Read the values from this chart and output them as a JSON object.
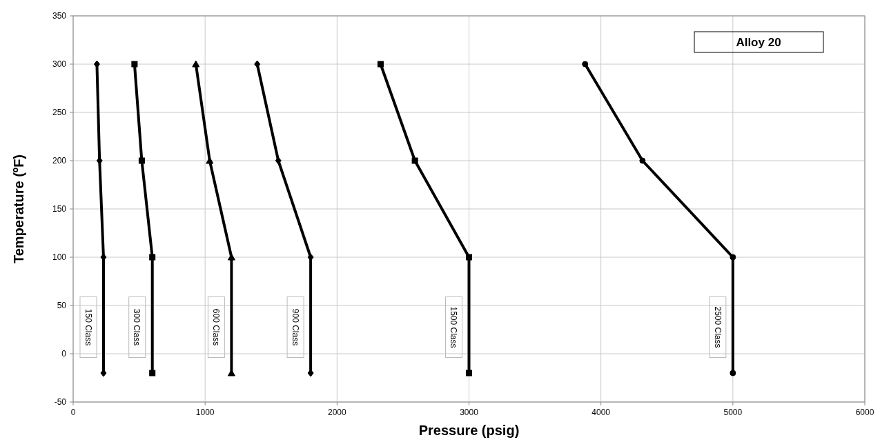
{
  "chart_data": {
    "type": "line",
    "title": "Alloy 20",
    "xlabel": "Pressure  (psig)",
    "ylabel": "Temperature (ºF)",
    "xlim": [
      0,
      6000
    ],
    "xticks": [
      0,
      1000,
      2000,
      3000,
      4000,
      5000,
      6000
    ],
    "ylim": [
      -50,
      350
    ],
    "yticks": [
      -50,
      0,
      50,
      100,
      150,
      200,
      250,
      300,
      350
    ],
    "grid": true,
    "line_style": "solid",
    "series": [
      {
        "name": "150 Class",
        "color": "#000000",
        "marker": "diamond",
        "x": [
          230,
          230,
          200,
          180
        ],
        "values": [
          -20,
          100,
          200,
          300
        ]
      },
      {
        "name": "300 Class",
        "color": "#000000",
        "marker": "square",
        "x": [
          600,
          600,
          520,
          465
        ],
        "values": [
          -20,
          100,
          200,
          300
        ]
      },
      {
        "name": "600 Class",
        "color": "#000000",
        "marker": "triangle",
        "x": [
          1200,
          1200,
          1035,
          930
        ],
        "values": [
          -20,
          100,
          200,
          300
        ]
      },
      {
        "name": "900 Class",
        "color": "#000000",
        "marker": "diamond",
        "x": [
          1800,
          1800,
          1555,
          1395
        ],
        "values": [
          -20,
          100,
          200,
          300
        ]
      },
      {
        "name": "1500 Class",
        "color": "#000000",
        "marker": "square",
        "x": [
          3000,
          3000,
          2590,
          2330
        ],
        "values": [
          -20,
          100,
          200,
          300
        ]
      },
      {
        "name": "2500 Class",
        "color": "#000000",
        "marker": "circle",
        "x": [
          5000,
          5000,
          4315,
          3880
        ],
        "values": [
          -20,
          100,
          200,
          300
        ]
      }
    ]
  }
}
